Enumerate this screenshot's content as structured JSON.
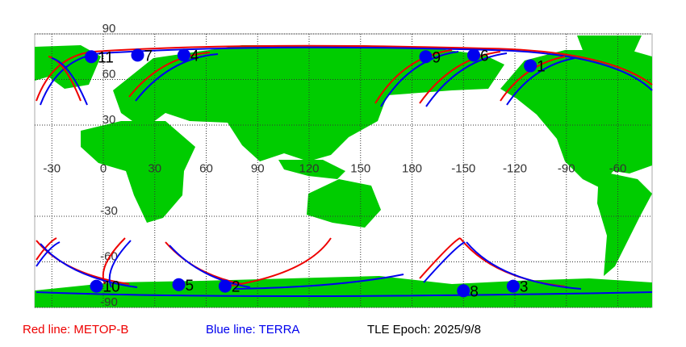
{
  "map": {
    "lon_ticks": [
      -30,
      0,
      30,
      60,
      90,
      120,
      150,
      180,
      -150,
      -120,
      -90,
      -60
    ],
    "lat_ticks": [
      90,
      60,
      30,
      -30,
      -60,
      -90
    ],
    "markers": [
      {
        "label": "11",
        "lon": -7,
        "lat": 75
      },
      {
        "label": "7",
        "lon": 20,
        "lat": 76
      },
      {
        "label": "4",
        "lon": 47,
        "lat": 76
      },
      {
        "label": "9",
        "lon": -172,
        "lat": 75
      },
      {
        "label": "6",
        "lon": -144,
        "lat": 76
      },
      {
        "label": "1",
        "lon": -111,
        "lat": 69
      },
      {
        "label": "10",
        "lon": -4,
        "lat": -76
      },
      {
        "label": "5",
        "lon": 44,
        "lat": -75
      },
      {
        "label": "2",
        "lon": 71,
        "lat": -76
      },
      {
        "label": "8",
        "lon": -150,
        "lat": -79
      },
      {
        "label": "3",
        "lon": -121,
        "lat": -76
      }
    ]
  },
  "legend": {
    "red": "Red line: METOP-B",
    "blue": "Blue line: TERRA",
    "epoch": "TLE Epoch: 2025/9/8"
  }
}
